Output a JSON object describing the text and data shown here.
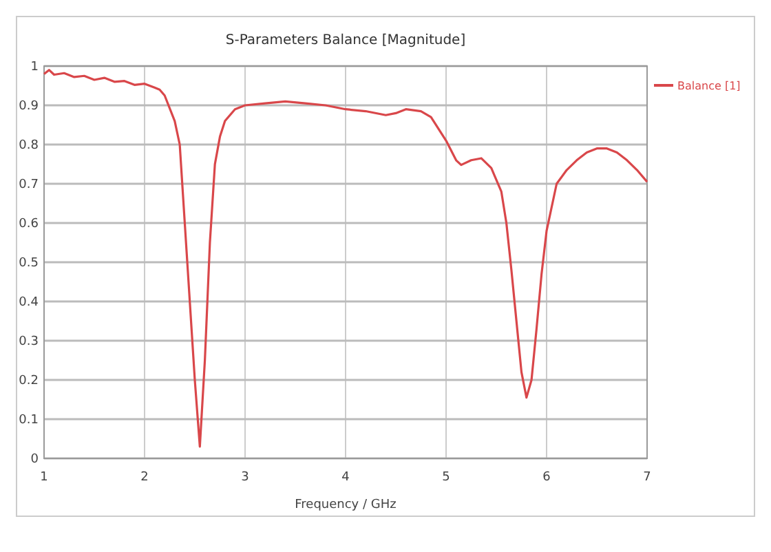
{
  "chart_data": {
    "type": "line",
    "title": "S-Parameters Balance [Magnitude]",
    "xlabel": "Frequency / GHz",
    "xlim": [
      1,
      7
    ],
    "xticks": [
      1,
      2,
      3,
      4,
      5,
      6,
      7
    ],
    "ylim": [
      0,
      1
    ],
    "yticks": [
      0,
      0.1,
      0.2,
      0.3,
      0.4,
      0.5,
      0.6,
      0.7,
      0.8,
      0.9,
      1
    ],
    "grid": true,
    "legend": "top right",
    "x": [
      1.0,
      1.05,
      1.1,
      1.2,
      1.3,
      1.4,
      1.5,
      1.6,
      1.7,
      1.8,
      1.9,
      2.0,
      2.1,
      2.15,
      2.2,
      2.3,
      2.35,
      2.4,
      2.45,
      2.5,
      2.55,
      2.6,
      2.65,
      2.7,
      2.75,
      2.8,
      2.9,
      3.0,
      3.2,
      3.4,
      3.6,
      3.8,
      4.0,
      4.2,
      4.4,
      4.5,
      4.6,
      4.75,
      4.85,
      5.0,
      5.1,
      5.15,
      5.25,
      5.35,
      5.45,
      5.55,
      5.6,
      5.65,
      5.7,
      5.75,
      5.8,
      5.85,
      5.9,
      5.95,
      6.0,
      6.1,
      6.2,
      6.3,
      6.4,
      6.5,
      6.6,
      6.7,
      6.8,
      6.9,
      7.0
    ],
    "series": [
      {
        "name": "Balance [1]",
        "color": "#d9474a",
        "values": [
          0.98,
          0.99,
          0.978,
          0.982,
          0.972,
          0.975,
          0.965,
          0.97,
          0.96,
          0.962,
          0.952,
          0.955,
          0.945,
          0.94,
          0.925,
          0.86,
          0.8,
          0.6,
          0.4,
          0.2,
          0.03,
          0.25,
          0.55,
          0.75,
          0.82,
          0.86,
          0.89,
          0.9,
          0.905,
          0.91,
          0.905,
          0.9,
          0.89,
          0.885,
          0.875,
          0.88,
          0.89,
          0.885,
          0.87,
          0.81,
          0.76,
          0.748,
          0.76,
          0.765,
          0.74,
          0.68,
          0.6,
          0.48,
          0.35,
          0.22,
          0.155,
          0.2,
          0.33,
          0.47,
          0.58,
          0.7,
          0.735,
          0.76,
          0.78,
          0.79,
          0.79,
          0.78,
          0.76,
          0.735,
          0.705
        ]
      }
    ]
  }
}
